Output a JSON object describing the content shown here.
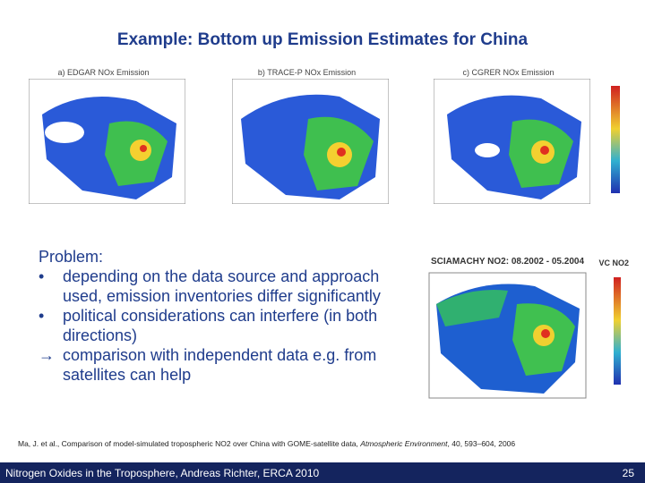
{
  "header": {
    "title": "Example: Bottom up Emission Estimates for China"
  },
  "maps": [
    {
      "label": "a)",
      "title": "EDGAR NOx Emission"
    },
    {
      "label": "b)",
      "title": "TRACE-P NOx Emission"
    },
    {
      "label": "c)",
      "title": "CGRER NOx Emission"
    }
  ],
  "satellite_map": {
    "title": "SCIAMACHY NO2: 08.2002 - 05.2004",
    "legend_title": "VC NO2"
  },
  "problem": {
    "heading": "Problem:",
    "items": [
      {
        "marker": "•",
        "text": "depending on the data source and approach used, emission inventories differ significantly"
      },
      {
        "marker": "•",
        "text": "political considerations can interfere (in both directions)"
      },
      {
        "marker": "→",
        "text": "comparison with independent data e.g. from satellites can help"
      }
    ]
  },
  "citation": {
    "authors_title": "Ma, J. et al., Comparison of model-simulated tropospheric NO2 over China with GOME-satellite data, ",
    "journal": "Atmospheric Environment",
    "details": ", 40, 593–604, 2006"
  },
  "footer": {
    "text": "Nitrogen Oxides in the Troposphere, Andreas Richter, ERCA 2010",
    "page": "25"
  }
}
